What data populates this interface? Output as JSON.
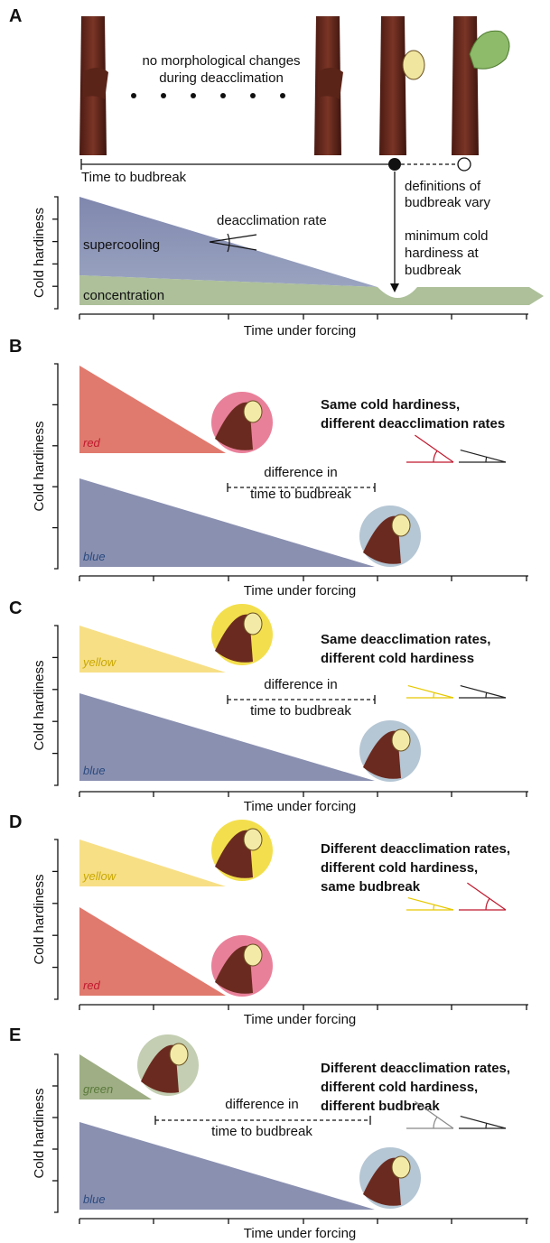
{
  "panel_a": {
    "label": "A",
    "note": [
      "no morphological changes",
      "during deacclimation"
    ],
    "timeline_label": "Time to budbreak",
    "budbreak_note": [
      "definitions of",
      "budbreak vary"
    ],
    "rate_label": "deacclimation rate",
    "supercooling_label": "supercooling",
    "minimum_note": [
      "minimum cold",
      "hardiness at",
      "budbreak"
    ],
    "concentration_label": "concentration",
    "y_axis_label": "Cold hardiness",
    "x_axis_label": "Time under forcing"
  },
  "panels": [
    {
      "label": "B",
      "title": [
        "Same cold hardiness,",
        "different deacclimation rates"
      ],
      "top_cultivar": "red",
      "bottom_cultivar": "blue",
      "difference": [
        "difference in",
        "time to budbreak"
      ],
      "y_axis_label": "Cold hardiness",
      "x_axis_label": "Time under forcing"
    },
    {
      "label": "C",
      "title": [
        "Same deacclimation rates,",
        "different cold hardiness"
      ],
      "top_cultivar": "yellow",
      "bottom_cultivar": "blue",
      "difference": [
        "difference in",
        "time to budbreak"
      ],
      "y_axis_label": "Cold hardiness",
      "x_axis_label": "Time under forcing"
    },
    {
      "label": "D",
      "title": [
        "Different deacclimation rates,",
        "different cold hardiness,",
        "same budbreak"
      ],
      "top_cultivar": "yellow",
      "bottom_cultivar": "red",
      "y_axis_label": "Cold hardiness",
      "x_axis_label": "Time under forcing"
    },
    {
      "label": "E",
      "title": [
        "Different deacclimation rates,",
        "different cold hardiness,",
        "different budbreak"
      ],
      "top_cultivar": "green",
      "bottom_cultivar": "blue",
      "difference": [
        "difference in",
        "time to budbreak"
      ],
      "y_axis_label": "Cold hardiness",
      "x_axis_label": "Time under forcing"
    }
  ]
}
